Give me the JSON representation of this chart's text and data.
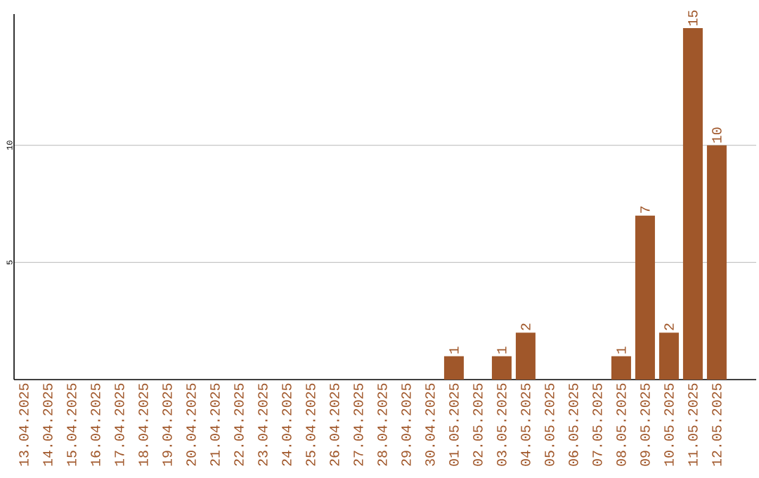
{
  "chart_data": {
    "type": "bar",
    "categories": [
      "13.04.2025",
      "14.04.2025",
      "15.04.2025",
      "16.04.2025",
      "17.04.2025",
      "18.04.2025",
      "19.04.2025",
      "20.04.2025",
      "21.04.2025",
      "22.04.2025",
      "23.04.2025",
      "24.04.2025",
      "25.04.2025",
      "26.04.2025",
      "27.04.2025",
      "28.04.2025",
      "29.04.2025",
      "30.04.2025",
      "01.05.2025",
      "02.05.2025",
      "03.05.2025",
      "04.05.2025",
      "05.05.2025",
      "06.05.2025",
      "07.05.2025",
      "08.05.2025",
      "09.05.2025",
      "10.05.2025",
      "11.05.2025",
      "12.05.2025"
    ],
    "values": [
      0,
      0,
      0,
      0,
      0,
      0,
      0,
      0,
      0,
      0,
      0,
      0,
      0,
      0,
      0,
      0,
      0,
      0,
      1,
      0,
      1,
      2,
      0,
      0,
      0,
      1,
      7,
      2,
      15,
      10
    ],
    "value_labels": [
      null,
      null,
      null,
      null,
      null,
      null,
      null,
      null,
      null,
      null,
      null,
      null,
      null,
      null,
      null,
      null,
      null,
      null,
      "1",
      null,
      "1",
      "2",
      null,
      null,
      null,
      "1",
      "7",
      "2",
      "15",
      "10"
    ],
    "color": "#a0572a",
    "ylim": [
      0,
      15.6
    ],
    "yticks": [
      5,
      10
    ],
    "grid": "y"
  }
}
